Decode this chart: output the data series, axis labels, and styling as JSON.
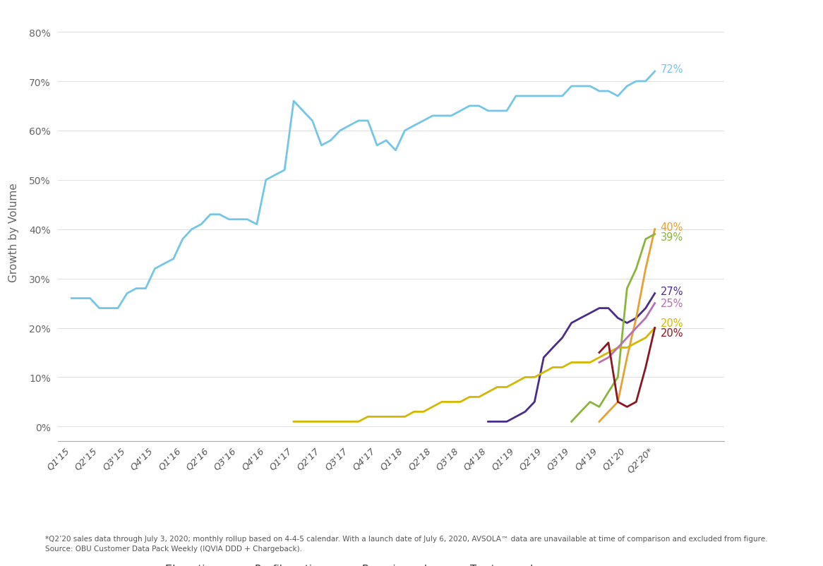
{
  "x_labels": [
    "Q1'15",
    "Q2'15",
    "Q3'15",
    "Q4'15",
    "Q1'16",
    "Q2'16",
    "Q3'16",
    "Q4'16",
    "Q1'17",
    "Q2'17",
    "Q3'17",
    "Q4'17",
    "Q1'18",
    "Q2'18",
    "Q3'18",
    "Q4'18",
    "Q1'19",
    "Q2'19",
    "Q3'19",
    "Q4'19",
    "Q1'20",
    "Q2'20*"
  ],
  "colors": {
    "filgrastim": "#74c6e8",
    "pegfilgrastim": "#4a2c8f",
    "bevacizumab": "#e8a030",
    "trastuzumab": "#8ab53a",
    "infliximab": "#d4b800",
    "esa": "#b870b0",
    "rituximab": "#8b1520"
  },
  "ylabel": "Growth by Volume",
  "footnote1": "*Q2’20 sales data through July 3, 2020; monthly rollup based on 4-4-5 calendar. With a launch date of July 6, 2020, AVSOLA™ data are unavailable at time of comparison and excluded from figure.",
  "footnote2": "Source: OBU Customer Data Pack Weekly (IQVIA DDD + Chargeback).",
  "background_color": "#ffffff",
  "filgrastim_x": [
    0.0,
    0.33,
    0.67,
    1.0,
    1.33,
    1.67,
    2.0,
    2.33,
    2.67,
    3.0,
    3.33,
    3.67,
    4.0,
    4.33,
    4.67,
    5.0,
    5.33,
    5.67,
    6.0,
    6.33,
    6.67,
    7.0,
    7.33,
    7.67,
    8.0,
    8.33,
    8.67,
    9.0,
    9.33,
    9.67,
    10.0,
    10.33,
    10.67,
    11.0,
    11.33,
    11.67,
    12.0,
    12.33,
    12.67,
    13.0,
    13.33,
    13.67,
    14.0,
    14.33,
    14.67,
    15.0,
    15.33,
    15.67,
    16.0,
    16.33,
    16.67,
    17.0,
    17.33,
    17.67,
    18.0,
    18.33,
    18.67,
    19.0,
    19.33,
    19.67,
    20.0,
    20.33,
    20.67,
    21.0
  ],
  "filgrastim_y": [
    26,
    26,
    26,
    24,
    24,
    24,
    27,
    28,
    28,
    32,
    33,
    34,
    38,
    40,
    41,
    43,
    43,
    42,
    42,
    42,
    41,
    50,
    51,
    52,
    66,
    64,
    62,
    57,
    58,
    60,
    61,
    62,
    62,
    57,
    58,
    56,
    60,
    61,
    62,
    63,
    63,
    63,
    64,
    65,
    65,
    64,
    64,
    64,
    67,
    67,
    67,
    67,
    67,
    67,
    69,
    69,
    69,
    68,
    68,
    67,
    69,
    70,
    70,
    72
  ],
  "pegfilgrastim_x": [
    15.0,
    15.33,
    15.67,
    16.0,
    16.33,
    16.67,
    17.0,
    17.33,
    17.67,
    18.0,
    18.33,
    18.67,
    19.0,
    19.33,
    19.67,
    20.0,
    20.33,
    20.67,
    21.0
  ],
  "pegfilgrastim_y": [
    1,
    1,
    1,
    2,
    3,
    5,
    14,
    16,
    18,
    21,
    22,
    23,
    24,
    24,
    22,
    21,
    22,
    24,
    27
  ],
  "bevacizumab_x": [
    19.0,
    19.33,
    19.67,
    20.0,
    20.33,
    20.67,
    21.0
  ],
  "bevacizumab_y": [
    1,
    3,
    5,
    14,
    22,
    32,
    40
  ],
  "trastuzumab_x": [
    18.0,
    18.33,
    18.67,
    19.0,
    19.33,
    19.67,
    20.0,
    20.33,
    20.67,
    21.0
  ],
  "trastuzumab_y": [
    1,
    3,
    5,
    4,
    7,
    10,
    28,
    32,
    38,
    39
  ],
  "infliximab_x": [
    8.0,
    8.33,
    8.67,
    9.0,
    9.33,
    9.67,
    10.0,
    10.33,
    10.67,
    11.0,
    11.33,
    11.67,
    12.0,
    12.33,
    12.67,
    13.0,
    13.33,
    13.67,
    14.0,
    14.33,
    14.67,
    15.0,
    15.33,
    15.67,
    16.0,
    16.33,
    16.67,
    17.0,
    17.33,
    17.67,
    18.0,
    18.33,
    18.67,
    19.0,
    19.33,
    19.67,
    20.0,
    20.33,
    20.67,
    21.0
  ],
  "infliximab_y": [
    1,
    1,
    1,
    1,
    1,
    1,
    1,
    1,
    2,
    2,
    2,
    2,
    2,
    3,
    3,
    4,
    5,
    5,
    5,
    6,
    6,
    7,
    8,
    8,
    9,
    10,
    10,
    11,
    12,
    12,
    13,
    13,
    13,
    14,
    15,
    16,
    16,
    17,
    18,
    20
  ],
  "esa_x": [
    19.0,
    19.33,
    19.67,
    20.0,
    20.33,
    20.67,
    21.0
  ],
  "esa_y": [
    13,
    14,
    16,
    18,
    20,
    22,
    25
  ],
  "rituximab_x": [
    19.0,
    19.33,
    19.67,
    20.0,
    20.33,
    20.67,
    21.0
  ],
  "rituximab_y": [
    15,
    17,
    5,
    4,
    5,
    12,
    20
  ]
}
